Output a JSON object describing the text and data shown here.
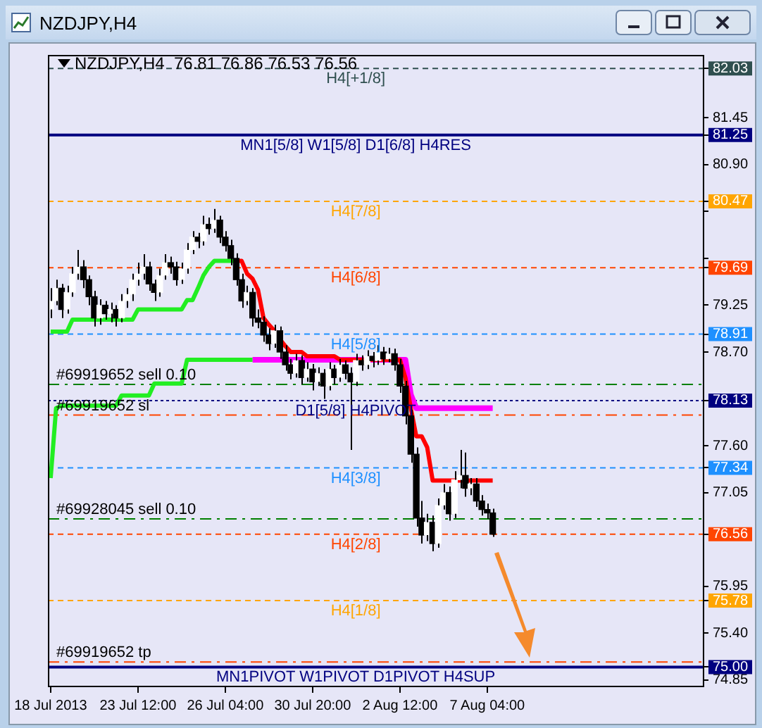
{
  "chart_data": {
    "type": "candlestick",
    "title": "NZDJPY,H4",
    "subtitle": "NZDJPY,H4  76.81 76.86 76.53 76.56",
    "categories": [
      "18 Jul 2013",
      null,
      null,
      null,
      null,
      null,
      null,
      null,
      null,
      null,
      null,
      null,
      null,
      null,
      null,
      null,
      "23 Jul 12:00",
      null,
      null,
      null,
      null,
      null,
      null,
      null,
      null,
      null,
      null,
      null,
      null,
      null,
      null,
      null,
      "26 Jul 04:00",
      null,
      null,
      null,
      null,
      null,
      null,
      null,
      null,
      null,
      null,
      null,
      null,
      null,
      null,
      null,
      "30 Jul 20:00",
      null,
      null,
      null,
      null,
      null,
      null,
      null,
      null,
      null,
      null,
      null,
      null,
      null,
      null,
      null,
      "2 Aug 12:00",
      null,
      null,
      null,
      null,
      null,
      null,
      null,
      null,
      null,
      null,
      null,
      null,
      null,
      null,
      null,
      "7 Aug 04:00",
      null,
      null,
      null,
      null,
      null,
      null,
      null,
      null,
      null,
      null,
      null,
      null,
      null,
      null,
      null,
      null,
      null,
      null,
      null,
      null,
      null,
      null,
      null,
      null,
      null,
      null,
      null,
      null,
      null,
      null,
      null,
      null,
      null,
      null,
      null,
      null,
      null,
      null,
      null
    ],
    "ohlc": [
      [
        79.2,
        79.45,
        79.1,
        79.3
      ],
      [
        79.3,
        79.55,
        79.25,
        79.45
      ],
      [
        79.45,
        79.5,
        79.1,
        79.2
      ],
      [
        79.2,
        79.48,
        79.15,
        79.4
      ],
      [
        79.4,
        79.7,
        79.35,
        79.62
      ],
      [
        79.62,
        79.9,
        79.55,
        79.7
      ],
      [
        79.7,
        79.78,
        79.45,
        79.55
      ],
      [
        79.55,
        79.6,
        79.25,
        79.35
      ],
      [
        79.35,
        79.42,
        79.0,
        79.1
      ],
      [
        79.1,
        79.32,
        79.02,
        79.25
      ],
      [
        79.25,
        79.3,
        79.08,
        79.15
      ],
      [
        79.15,
        79.28,
        79.05,
        79.2
      ],
      [
        79.2,
        79.25,
        79.0,
        79.1
      ],
      [
        79.1,
        79.38,
        79.05,
        79.3
      ],
      [
        79.3,
        79.45,
        79.22,
        79.38
      ],
      [
        79.38,
        79.62,
        79.3,
        79.55
      ],
      [
        79.55,
        79.75,
        79.48,
        79.62
      ],
      [
        79.62,
        79.85,
        79.55,
        79.7
      ],
      [
        79.7,
        79.76,
        79.42,
        79.5
      ],
      [
        79.5,
        79.55,
        79.3,
        79.4
      ],
      [
        79.4,
        79.68,
        79.35,
        79.6
      ],
      [
        79.6,
        79.85,
        79.55,
        79.75
      ],
      [
        79.75,
        79.82,
        79.62,
        79.7
      ],
      [
        79.7,
        79.76,
        79.48,
        79.55
      ],
      [
        79.55,
        79.75,
        79.5,
        79.68
      ],
      [
        79.68,
        79.98,
        79.62,
        79.9
      ],
      [
        79.9,
        80.12,
        79.85,
        80.05
      ],
      [
        80.05,
        80.1,
        79.92,
        80.0
      ],
      [
        80.0,
        80.3,
        79.95,
        80.2
      ],
      [
        80.2,
        80.28,
        80.08,
        80.15
      ],
      [
        80.15,
        80.38,
        80.1,
        80.25
      ],
      [
        80.25,
        80.3,
        79.98,
        80.05
      ],
      [
        80.05,
        80.12,
        79.88,
        79.95
      ],
      [
        79.95,
        80.02,
        79.72,
        79.8
      ],
      [
        79.8,
        79.86,
        79.48,
        79.55
      ],
      [
        79.55,
        79.62,
        79.22,
        79.3
      ],
      [
        79.3,
        79.48,
        79.25,
        79.4
      ],
      [
        79.4,
        79.45,
        79.0,
        79.1
      ],
      [
        79.1,
        79.2,
        78.98,
        79.05
      ],
      [
        79.05,
        79.12,
        78.82,
        78.9
      ],
      [
        78.9,
        78.98,
        78.72,
        78.8
      ],
      [
        78.8,
        79.02,
        78.75,
        78.95
      ],
      [
        78.95,
        79.0,
        78.62,
        78.7
      ],
      [
        78.7,
        78.78,
        78.48,
        78.55
      ],
      [
        78.55,
        78.62,
        78.38,
        78.45
      ],
      [
        78.45,
        78.68,
        78.4,
        78.6
      ],
      [
        78.6,
        78.66,
        78.32,
        78.4
      ],
      [
        78.4,
        78.58,
        78.35,
        78.5
      ],
      [
        78.5,
        78.56,
        78.25,
        78.35
      ],
      [
        78.35,
        78.52,
        78.3,
        78.45
      ],
      [
        78.45,
        78.5,
        78.15,
        78.3
      ],
      [
        78.3,
        78.58,
        78.25,
        78.5
      ],
      [
        78.5,
        78.55,
        78.32,
        78.4
      ],
      [
        78.4,
        78.62,
        78.35,
        78.55
      ],
      [
        78.55,
        78.6,
        78.38,
        78.45
      ],
      [
        78.45,
        78.52,
        77.55,
        78.35
      ],
      [
        78.35,
        78.68,
        78.3,
        78.6
      ],
      [
        78.6,
        78.66,
        78.48,
        78.55
      ],
      [
        78.55,
        78.72,
        78.5,
        78.65
      ],
      [
        78.65,
        78.7,
        78.52,
        78.6
      ],
      [
        78.6,
        78.78,
        78.55,
        78.7
      ],
      [
        78.7,
        78.76,
        78.55,
        78.62
      ],
      [
        78.62,
        78.75,
        78.58,
        78.68
      ],
      [
        78.68,
        78.74,
        78.48,
        78.55
      ],
      [
        78.55,
        78.62,
        78.22,
        78.3
      ],
      [
        78.3,
        78.36,
        77.85,
        77.95
      ],
      [
        77.95,
        78.02,
        77.4,
        77.5
      ],
      [
        77.5,
        77.58,
        76.65,
        76.75
      ],
      [
        76.75,
        76.95,
        76.45,
        76.55
      ],
      [
        76.55,
        76.8,
        76.48,
        76.7
      ],
      [
        76.7,
        76.78,
        76.36,
        76.45
      ],
      [
        76.45,
        76.98,
        76.4,
        76.9
      ],
      [
        76.9,
        77.15,
        76.85,
        77.05
      ],
      [
        77.05,
        77.12,
        76.72,
        76.8
      ],
      [
        76.8,
        77.3,
        76.75,
        77.2
      ],
      [
        77.2,
        77.55,
        77.1,
        77.25
      ],
      [
        77.25,
        77.52,
        77.0,
        77.1
      ],
      [
        77.1,
        77.22,
        77.02,
        77.15
      ],
      [
        77.15,
        77.22,
        76.88,
        76.95
      ],
      [
        76.95,
        77.02,
        76.78,
        76.85
      ],
      [
        76.85,
        76.92,
        76.74,
        76.81
      ],
      [
        76.81,
        76.86,
        76.53,
        76.56
      ],
      null,
      null,
      null,
      null,
      null,
      null,
      null,
      null,
      null,
      null,
      null,
      null,
      null,
      null,
      null,
      null,
      null,
      null,
      null,
      null,
      null,
      null,
      null,
      null,
      null,
      null,
      null,
      null,
      null,
      null,
      null,
      null,
      null,
      null,
      null,
      null,
      null,
      null
    ],
    "series": [
      {
        "type": "line",
        "color": "#22ee22",
        "values": [
          78.94,
          78.94,
          78.94,
          78.94,
          79.08,
          79.08,
          79.08,
          79.08,
          79.08,
          79.08,
          79.08,
          79.08,
          79.08,
          79.08,
          79.08,
          79.08,
          79.2,
          79.2,
          79.2,
          79.2,
          79.2,
          79.2,
          79.2,
          79.2,
          79.2,
          79.31,
          79.31,
          79.45,
          79.6,
          79.7,
          79.77,
          79.77,
          79.77,
          79.77,
          79.77,
          null,
          null,
          null,
          null,
          null,
          null,
          null,
          null,
          null,
          null,
          null,
          null,
          null,
          null,
          null,
          null,
          null,
          null,
          null,
          null,
          null,
          null,
          null,
          null,
          null,
          null,
          null,
          null,
          null,
          null,
          null,
          null,
          null,
          null,
          null,
          null,
          null,
          null,
          null,
          null,
          null,
          null,
          null,
          null,
          null,
          null,
          null,
          null,
          null,
          null,
          null,
          null,
          null,
          null,
          null,
          null,
          null,
          null,
          null,
          null,
          null,
          null,
          null,
          null,
          null,
          null,
          null,
          null,
          null,
          null,
          null,
          null,
          null,
          null,
          null,
          null,
          null,
          null,
          null,
          null,
          null,
          null,
          null,
          null,
          null
        ]
      },
      {
        "type": "line",
        "color": "#22ee22",
        "values": [
          77.22,
          78.04,
          78.07,
          78.07,
          78.07,
          78.07,
          78.07,
          78.07,
          78.07,
          78.07,
          78.07,
          78.07,
          78.07,
          78.19,
          78.19,
          78.19,
          78.19,
          78.19,
          78.19,
          78.33,
          78.33,
          78.33,
          78.33,
          78.33,
          78.33,
          78.61,
          78.61,
          78.61,
          78.61,
          78.61,
          78.61,
          78.61,
          78.61,
          78.61,
          78.61,
          78.61,
          78.61,
          78.61,
          null,
          null,
          null,
          null,
          null,
          null,
          null,
          null,
          null,
          null,
          null,
          null,
          null,
          null,
          null,
          null,
          null,
          null,
          null,
          null,
          null,
          null,
          null,
          null,
          null,
          null,
          null,
          null,
          null,
          null,
          null,
          null,
          null,
          null,
          null,
          null,
          null,
          null,
          null,
          null,
          null,
          null,
          null,
          null,
          null,
          null,
          null,
          null,
          null,
          null,
          null,
          null,
          null,
          null,
          null,
          null,
          null,
          null,
          null,
          null,
          null,
          null,
          null,
          null,
          null,
          null,
          null,
          null,
          null,
          null,
          null,
          null,
          null,
          null,
          null,
          null,
          null,
          null,
          null,
          null,
          null,
          null
        ]
      },
      {
        "type": "line",
        "color": "#ff0000",
        "values": [
          null,
          null,
          null,
          null,
          null,
          null,
          null,
          null,
          null,
          null,
          null,
          null,
          null,
          null,
          null,
          null,
          null,
          null,
          null,
          null,
          null,
          null,
          null,
          null,
          null,
          null,
          null,
          null,
          null,
          null,
          null,
          null,
          null,
          null,
          79.77,
          79.77,
          79.62,
          79.56,
          79.43,
          79.1,
          79.02,
          78.95,
          78.85,
          78.77,
          78.7,
          78.7,
          78.7,
          78.65,
          78.65,
          78.65,
          78.65,
          78.65,
          78.65,
          78.61,
          78.61,
          78.61,
          78.61,
          78.61,
          78.61,
          78.61,
          78.61,
          78.61,
          78.61,
          78.61,
          78.61,
          78.4,
          78.04,
          77.71,
          77.71,
          77.58,
          77.19,
          77.19,
          77.19,
          77.19,
          77.19,
          77.19,
          77.19,
          77.19,
          77.19,
          77.19,
          77.19,
          77.19,
          null,
          null,
          null,
          null,
          null,
          null,
          null,
          null,
          null,
          null,
          null,
          null,
          null,
          null,
          null,
          null,
          null,
          null,
          null,
          null,
          null,
          null,
          null,
          null,
          null,
          null,
          null,
          null,
          null,
          null,
          null,
          null,
          null,
          null,
          null,
          null,
          null,
          null
        ]
      },
      {
        "type": "line",
        "color": "#ff00ff",
        "values": [
          null,
          null,
          null,
          null,
          null,
          null,
          null,
          null,
          null,
          null,
          null,
          null,
          null,
          null,
          null,
          null,
          null,
          null,
          null,
          null,
          null,
          null,
          null,
          null,
          null,
          null,
          null,
          null,
          null,
          null,
          null,
          null,
          null,
          null,
          null,
          null,
          null,
          78.61,
          78.61,
          78.61,
          78.61,
          78.61,
          78.61,
          78.61,
          78.61,
          78.61,
          78.61,
          78.61,
          78.61,
          78.61,
          78.61,
          78.61,
          78.61,
          78.61,
          78.61,
          78.61,
          78.61,
          78.61,
          78.61,
          78.61,
          78.61,
          78.61,
          78.61,
          78.61,
          78.61,
          78.61,
          78.2,
          78.04,
          78.04,
          78.04,
          78.04,
          78.04,
          78.04,
          78.04,
          78.04,
          78.04,
          78.04,
          78.04,
          78.04,
          78.04,
          78.04,
          78.04,
          null,
          null,
          null,
          null,
          null,
          null,
          null,
          null,
          null,
          null,
          null,
          null,
          null,
          null,
          null,
          null,
          null,
          null,
          null,
          null,
          null,
          null,
          null,
          null,
          null,
          null,
          null,
          null,
          null,
          null,
          null,
          null,
          null,
          null,
          null,
          null,
          null,
          null
        ]
      }
    ],
    "ylim": [
      74.78,
      82.19
    ],
    "yticks": [
      74.85,
      {
        "value": 75,
        "label": "75.00"
      },
      {
        "value": 75.4,
        "label": "75.40"
      },
      75.78,
      75.95,
      76.56,
      77.05,
      77.34,
      {
        "value": 77.6,
        "label": "77.60"
      },
      78.13,
      {
        "value": 78.7,
        "label": "78.70"
      },
      78.91,
      79.25,
      79.69,
      {
        "value": 79.8,
        "label": null
      },
      {
        "value": 80.35,
        "label": null
      },
      80.47,
      {
        "value": 80.9,
        "label": "80.90"
      },
      81.25,
      81.45,
      82.03
    ],
    "ref_lines": [
      {
        "axis": "y",
        "value": 82.03,
        "label": "H4[+1/8]",
        "color": "#2f4f4f",
        "line_style": "dashed"
      },
      {
        "axis": "y",
        "value": 81.25,
        "label": "MN1[5/8] W1[5/8] D1[6/8] H4RES",
        "color": "#000080",
        "line_style": "solid"
      },
      {
        "axis": "y",
        "value": 80.47,
        "label": "H4[7/8]",
        "color": "#ffa500",
        "line_style": "dashed"
      },
      {
        "axis": "y",
        "value": 79.69,
        "label": "H4[6/8]",
        "color": "#ff4500",
        "line_style": "dashed"
      },
      {
        "axis": "y",
        "value": 78.91,
        "label": "H4[5/8]",
        "color": "#1e90ff",
        "line_style": "dashed"
      },
      {
        "axis": "y",
        "value": 78.13,
        "label": "D1[5/8] H4PIVOT",
        "color": "#000080",
        "line_style": "dotted"
      },
      {
        "axis": "y",
        "value": 77.34,
        "label": "H4[3/8]",
        "color": "#1e90ff",
        "line_style": "dashed"
      },
      {
        "axis": "y",
        "value": 76.56,
        "label": "H4[2/8]",
        "color": "#ff4500",
        "line_style": "dashed"
      },
      {
        "axis": "y",
        "value": 75.78,
        "label": "H4[1/8]",
        "color": "#ffa500",
        "line_style": "dashed"
      },
      {
        "axis": "y",
        "value": 75.0,
        "label": "MN1PIVOT W1PIVOT D1PIVOT H4SUP",
        "color": "#000080",
        "line_style": "solid"
      },
      {
        "axis": "y",
        "value": 78.32,
        "label": "#69919652 sell 0.10",
        "color": "#008000",
        "line_style": "dashdot"
      },
      {
        "axis": "y",
        "value": 77.96,
        "label": "#69919652 sl",
        "color": "#ff4500",
        "line_style": "dashdot"
      },
      {
        "axis": "y",
        "value": 76.74,
        "label": "#69928045 sell 0.10",
        "color": "#008000",
        "line_style": "dashdot"
      },
      {
        "axis": "y",
        "value": 75.06,
        "label": "#69919652 tp",
        "color": "#ff4500",
        "line_style": "dashdot"
      }
    ]
  }
}
